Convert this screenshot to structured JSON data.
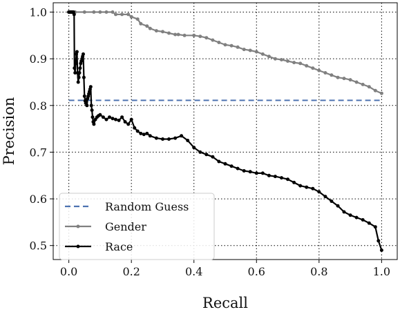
{
  "chart_data": {
    "type": "line",
    "xlabel": "Recall",
    "ylabel": "Precision",
    "xlim": [
      -0.05,
      1.05
    ],
    "ylim": [
      0.47,
      1.02
    ],
    "xticks": [
      0.0,
      0.2,
      0.4,
      0.6,
      0.8,
      1.0
    ],
    "yticks": [
      0.5,
      0.6,
      0.7,
      0.8,
      0.9,
      1.0
    ],
    "xtick_labels": [
      "0.0",
      "0.2",
      "0.4",
      "0.6",
      "0.8",
      "1.0"
    ],
    "ytick_labels": [
      "0.5",
      "0.6",
      "0.7",
      "0.8",
      "0.9",
      "1.0"
    ],
    "grid": true,
    "grid_style": "dotted",
    "legend_position": "lower-left",
    "series": [
      {
        "name": "Random Guess",
        "color": "#4c72b0",
        "style": "dashed",
        "markers": false,
        "x": [
          0.0,
          1.0
        ],
        "y": [
          0.811,
          0.811
        ]
      },
      {
        "name": "Gender",
        "color": "#808080",
        "style": "solid",
        "markers": true,
        "x": [
          0.0,
          0.02,
          0.05,
          0.08,
          0.1,
          0.12,
          0.14,
          0.15,
          0.17,
          0.19,
          0.2,
          0.22,
          0.23,
          0.25,
          0.26,
          0.28,
          0.3,
          0.32,
          0.34,
          0.35,
          0.37,
          0.4,
          0.42,
          0.44,
          0.46,
          0.48,
          0.5,
          0.52,
          0.54,
          0.56,
          0.58,
          0.6,
          0.62,
          0.64,
          0.66,
          0.68,
          0.7,
          0.72,
          0.74,
          0.76,
          0.78,
          0.8,
          0.82,
          0.84,
          0.86,
          0.88,
          0.9,
          0.92,
          0.94,
          0.96,
          0.98,
          1.0
        ],
        "y": [
          1.0,
          1.0,
          1.0,
          1.0,
          1.0,
          1.0,
          1.0,
          0.995,
          0.995,
          0.995,
          0.99,
          0.985,
          0.975,
          0.97,
          0.965,
          0.96,
          0.958,
          0.955,
          0.952,
          0.952,
          0.95,
          0.95,
          0.948,
          0.945,
          0.94,
          0.935,
          0.93,
          0.928,
          0.925,
          0.92,
          0.918,
          0.915,
          0.91,
          0.905,
          0.9,
          0.898,
          0.895,
          0.892,
          0.89,
          0.885,
          0.88,
          0.875,
          0.87,
          0.865,
          0.86,
          0.858,
          0.855,
          0.85,
          0.845,
          0.84,
          0.832,
          0.826
        ]
      },
      {
        "name": "Race",
        "color": "#000000",
        "style": "solid",
        "markers": true,
        "x": [
          0.0,
          0.002,
          0.004,
          0.006,
          0.008,
          0.01,
          0.012,
          0.015,
          0.017,
          0.018,
          0.02,
          0.022,
          0.024,
          0.026,
          0.028,
          0.03,
          0.032,
          0.034,
          0.036,
          0.038,
          0.04,
          0.042,
          0.044,
          0.046,
          0.048,
          0.05,
          0.052,
          0.054,
          0.056,
          0.058,
          0.06,
          0.062,
          0.064,
          0.066,
          0.068,
          0.07,
          0.072,
          0.074,
          0.076,
          0.078,
          0.08,
          0.085,
          0.09,
          0.095,
          0.1,
          0.11,
          0.12,
          0.13,
          0.14,
          0.15,
          0.16,
          0.17,
          0.18,
          0.19,
          0.2,
          0.21,
          0.22,
          0.23,
          0.24,
          0.25,
          0.26,
          0.28,
          0.3,
          0.32,
          0.34,
          0.36,
          0.38,
          0.4,
          0.42,
          0.44,
          0.46,
          0.48,
          0.5,
          0.52,
          0.54,
          0.56,
          0.58,
          0.6,
          0.62,
          0.64,
          0.66,
          0.68,
          0.7,
          0.72,
          0.74,
          0.76,
          0.78,
          0.8,
          0.82,
          0.84,
          0.86,
          0.88,
          0.9,
          0.92,
          0.94,
          0.96,
          0.98,
          0.99,
          1.0
        ],
        "y": [
          1.0,
          1.0,
          1.0,
          1.0,
          1.0,
          1.0,
          1.0,
          1.0,
          0.995,
          0.88,
          0.87,
          0.89,
          0.91,
          0.915,
          0.87,
          0.85,
          0.86,
          0.87,
          0.88,
          0.89,
          0.895,
          0.9,
          0.905,
          0.91,
          0.86,
          0.82,
          0.81,
          0.805,
          0.812,
          0.8,
          0.815,
          0.82,
          0.825,
          0.83,
          0.835,
          0.84,
          0.8,
          0.79,
          0.775,
          0.765,
          0.76,
          0.77,
          0.775,
          0.778,
          0.78,
          0.775,
          0.77,
          0.775,
          0.772,
          0.77,
          0.768,
          0.775,
          0.765,
          0.76,
          0.77,
          0.752,
          0.745,
          0.74,
          0.738,
          0.74,
          0.735,
          0.73,
          0.728,
          0.728,
          0.73,
          0.735,
          0.725,
          0.71,
          0.7,
          0.695,
          0.69,
          0.68,
          0.675,
          0.67,
          0.665,
          0.66,
          0.658,
          0.655,
          0.655,
          0.65,
          0.648,
          0.645,
          0.642,
          0.635,
          0.628,
          0.625,
          0.622,
          0.615,
          0.605,
          0.595,
          0.585,
          0.572,
          0.565,
          0.56,
          0.555,
          0.548,
          0.54,
          0.51,
          0.49
        ]
      }
    ]
  }
}
